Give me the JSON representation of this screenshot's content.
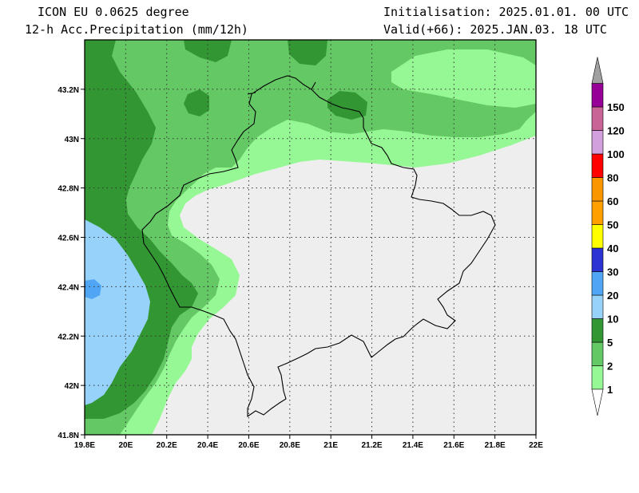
{
  "header": {
    "model": "ICON EU 0.0625 degree",
    "product": "12-h Acc.Precipitation (mm/12h)",
    "init": "Initialisation: 2025.01.01. 00 UTC",
    "valid": "Valid(+66): 2025.JAN.03. 18 UTC"
  },
  "map": {
    "lon_range": [
      19.8,
      22.0
    ],
    "lat_range": [
      41.8,
      43.4
    ],
    "x_ticks": [
      {
        "value": 19.8,
        "label": "19.8E"
      },
      {
        "value": 20.0,
        "label": "20E"
      },
      {
        "value": 20.2,
        "label": "20.2E"
      },
      {
        "value": 20.4,
        "label": "20.4E"
      },
      {
        "value": 20.6,
        "label": "20.6E"
      },
      {
        "value": 20.8,
        "label": "20.8E"
      },
      {
        "value": 21.0,
        "label": "21E"
      },
      {
        "value": 21.2,
        "label": "21.2E"
      },
      {
        "value": 21.4,
        "label": "21.4E"
      },
      {
        "value": 21.6,
        "label": "21.6E"
      },
      {
        "value": 21.8,
        "label": "21.8E"
      },
      {
        "value": 22.0,
        "label": "22E"
      }
    ],
    "y_ticks": [
      {
        "value": 41.8,
        "label": "41.8N"
      },
      {
        "value": 42.0,
        "label": "42N"
      },
      {
        "value": 42.2,
        "label": "42.2N"
      },
      {
        "value": 42.4,
        "label": "42.4N"
      },
      {
        "value": 42.6,
        "label": "42.6N"
      },
      {
        "value": 42.8,
        "label": "42.8N"
      },
      {
        "value": 43.0,
        "label": "43N"
      },
      {
        "value": 43.2,
        "label": "43.2N"
      }
    ],
    "grid": "dotted",
    "colors": {
      "background": "#eeeeee",
      "mm_1": "#96f894",
      "mm_2": "#64c864",
      "mm_5": "#329632",
      "mm_10": "#96d2fa",
      "mm_20": "#50a5f5",
      "border": "#000000"
    }
  },
  "colorbar": {
    "levels": [
      {
        "label": "1",
        "color": "#96f894"
      },
      {
        "label": "2",
        "color": "#64c864"
      },
      {
        "label": "5",
        "color": "#329632"
      },
      {
        "label": "10",
        "color": "#96d2fa"
      },
      {
        "label": "20",
        "color": "#50a5f5"
      },
      {
        "label": "30",
        "color": "#2d32d2"
      },
      {
        "label": "40",
        "color": "#ffff00"
      },
      {
        "label": "50",
        "color": "#ffa000"
      },
      {
        "label": "60",
        "color": "#fa9600"
      },
      {
        "label": "80",
        "color": "#ff0000"
      },
      {
        "label": "100",
        "color": "#d2a0dc"
      },
      {
        "label": "120",
        "color": "#c86496"
      },
      {
        "label": "150",
        "color": "#960096"
      }
    ],
    "top_color": "#a0a0a0",
    "bottom_color": "#ffffff"
  }
}
